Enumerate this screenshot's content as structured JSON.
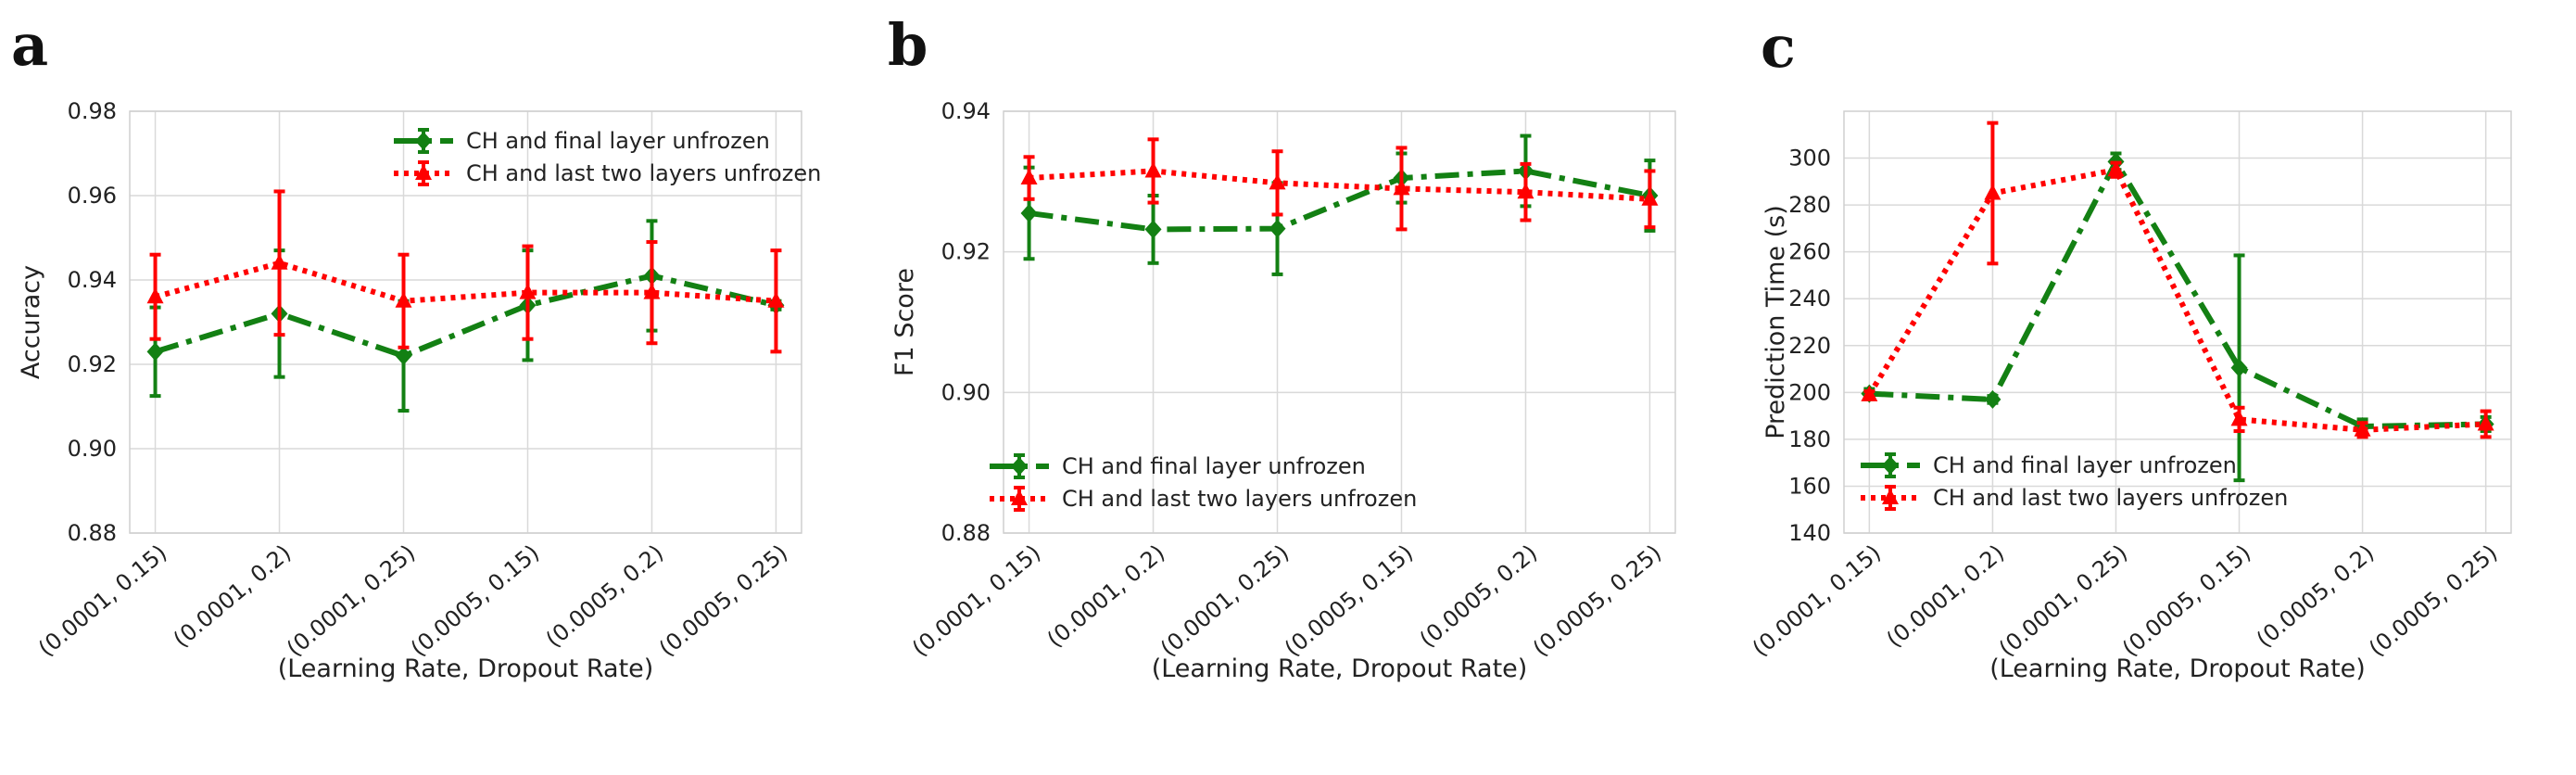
{
  "chart_data": [
    {
      "type": "line",
      "panel_label": "a",
      "xlabel": "(Learning Rate, Dropout Rate)",
      "ylabel": "Accuracy",
      "categories": [
        "(0.0001, 0.15)",
        "(0.0001, 0.2)",
        "(0.0001, 0.25)",
        "(0.0005, 0.15)",
        "(0.0005, 0.2)",
        "(0.0005, 0.25)"
      ],
      "ylim": [
        0.88,
        0.98
      ],
      "yticks": [
        "0.88",
        "0.90",
        "0.92",
        "0.94",
        "0.96",
        "0.98"
      ],
      "grid": true,
      "legend_position": "top-right",
      "series": [
        {
          "name": "CH and final layer unfrozen",
          "color": "#138013",
          "style": "dashdot",
          "marker": "diamond",
          "values": [
            0.923,
            0.932,
            0.922,
            0.934,
            0.941,
            0.934
          ],
          "errors": [
            0.0105,
            0.015,
            0.013,
            0.013,
            0.013,
            0.001
          ]
        },
        {
          "name": "CH and last two layers unfrozen",
          "color": "#ff0000",
          "style": "dotted",
          "marker": "triangle",
          "values": [
            0.936,
            0.944,
            0.935,
            0.937,
            0.937,
            0.935
          ],
          "errors": [
            0.01,
            0.017,
            0.011,
            0.011,
            0.012,
            0.012
          ]
        }
      ]
    },
    {
      "type": "line",
      "panel_label": "b",
      "xlabel": "(Learning Rate, Dropout Rate)",
      "ylabel": "F1 Score",
      "categories": [
        "(0.0001, 0.15)",
        "(0.0001, 0.2)",
        "(0.0001, 0.25)",
        "(0.0005, 0.15)",
        "(0.0005, 0.2)",
        "(0.0005, 0.25)"
      ],
      "ylim": [
        0.88,
        0.94
      ],
      "yticks": [
        "0.88",
        "0.90",
        "0.92",
        "0.94"
      ],
      "grid": true,
      "legend_position": "bottom-left",
      "series": [
        {
          "name": "CH and final layer unfrozen",
          "color": "#138013",
          "style": "dashdot",
          "marker": "diamond",
          "values": [
            0.9255,
            0.9232,
            0.9233,
            0.9305,
            0.9315,
            0.928
          ],
          "errors": [
            0.0065,
            0.0048,
            0.0065,
            0.0035,
            0.005,
            0.005
          ]
        },
        {
          "name": "CH and last two layers unfrozen",
          "color": "#ff0000",
          "style": "dotted",
          "marker": "triangle",
          "values": [
            0.9305,
            0.9315,
            0.9298,
            0.929,
            0.9285,
            0.9275
          ],
          "errors": [
            0.003,
            0.0045,
            0.0045,
            0.0058,
            0.004,
            0.004
          ]
        }
      ]
    },
    {
      "type": "line",
      "panel_label": "c",
      "xlabel": "(Learning Rate, Dropout Rate)",
      "ylabel": "Prediction Time (s)",
      "categories": [
        "(0.0001, 0.15)",
        "(0.0001, 0.2)",
        "(0.0001, 0.25)",
        "(0.0005, 0.15)",
        "(0.0005, 0.2)",
        "(0.0005, 0.25)"
      ],
      "ylim": [
        140,
        320
      ],
      "yticks": [
        "140",
        "160",
        "180",
        "200",
        "220",
        "240",
        "260",
        "280",
        "300"
      ],
      "grid": true,
      "legend_position": "bottom-left",
      "series": [
        {
          "name": "CH and final layer unfrozen",
          "color": "#138013",
          "style": "dashdot",
          "marker": "diamond",
          "values": [
            199.5,
            197,
            298.5,
            210.5,
            185.5,
            186.5
          ],
          "errors": [
            2,
            1.5,
            3.5,
            48,
            3,
            3
          ]
        },
        {
          "name": "CH and last two layers unfrozen",
          "color": "#ff0000",
          "style": "dotted",
          "marker": "triangle",
          "values": [
            199,
            285,
            295,
            188.5,
            184,
            186.5
          ],
          "errors": [
            1.5,
            30,
            3,
            5,
            3,
            5.5
          ]
        }
      ]
    }
  ]
}
